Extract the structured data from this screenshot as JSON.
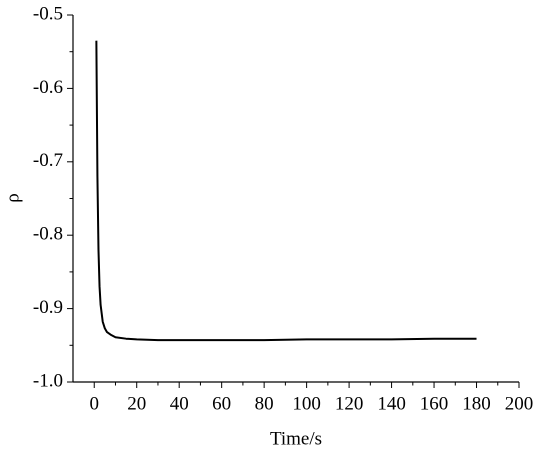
{
  "chart_data": {
    "type": "line",
    "xlabel": "Time/s",
    "ylabel": "ρ",
    "x": [
      1,
      1.5,
      2,
      2.5,
      3,
      4,
      5,
      6,
      8,
      10,
      15,
      20,
      30,
      40,
      60,
      80,
      100,
      120,
      140,
      160,
      180
    ],
    "series": [
      {
        "color": "#000000",
        "values": [
          -0.535,
          -0.72,
          -0.82,
          -0.87,
          -0.895,
          -0.918,
          -0.927,
          -0.932,
          -0.936,
          -0.939,
          -0.941,
          -0.942,
          -0.943,
          -0.943,
          -0.943,
          -0.943,
          -0.942,
          -0.942,
          -0.942,
          -0.941,
          -0.941
        ]
      }
    ],
    "xlim": [
      -10,
      200
    ],
    "xticks": [
      0,
      20,
      40,
      60,
      80,
      100,
      120,
      140,
      160,
      180,
      200
    ],
    "xminorticks": [
      10,
      30,
      50,
      70,
      90,
      110,
      130,
      150,
      170,
      190
    ],
    "ylim": [
      -1.0,
      -0.5
    ],
    "yticks": [
      {
        "value": -1.0,
        "label": "-1.0"
      },
      -0.9,
      -0.8,
      -0.7,
      -0.6,
      -0.5
    ],
    "yminorticks": [
      -0.95,
      -0.85,
      -0.75,
      -0.65,
      -0.55
    ],
    "grid": false
  }
}
